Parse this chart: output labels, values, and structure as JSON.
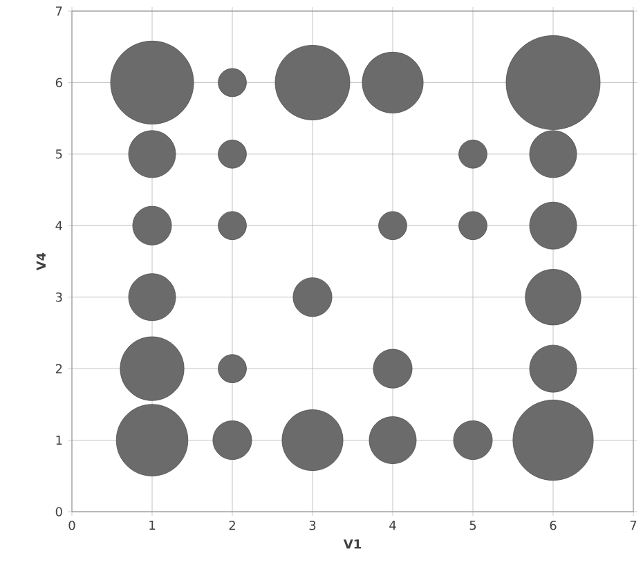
{
  "chart_data": {
    "type": "bubble",
    "xlabel": "V1",
    "ylabel": "V4",
    "xlim": [
      0,
      7
    ],
    "ylim": [
      0,
      7
    ],
    "xticks": [
      0,
      1,
      2,
      3,
      4,
      5,
      6,
      7
    ],
    "yticks": [
      0,
      1,
      2,
      3,
      4,
      5,
      6,
      7
    ],
    "grid": true,
    "series": [
      {
        "color": "#6b6b6b",
        "x": [
          1,
          2,
          3,
          4,
          6,
          1,
          2,
          5,
          6,
          1,
          2,
          4,
          5,
          6,
          1,
          3,
          6,
          1,
          2,
          4,
          6,
          1,
          2,
          3,
          4,
          5,
          6
        ],
        "values": [
          6,
          6,
          6,
          6,
          6,
          5,
          5,
          5,
          5,
          4,
          4,
          4,
          4,
          4,
          3,
          3,
          3,
          2,
          2,
          2,
          2,
          1,
          1,
          1,
          1,
          1,
          1
        ],
        "sizes": [
          0.78,
          0.09,
          0.63,
          0.42,
          1,
          0.25,
          0.09,
          0.09,
          0.25,
          0.17,
          0.09,
          0.09,
          0.09,
          0.25,
          0.25,
          0.17,
          0.35,
          0.46,
          0.09,
          0.17,
          0.25,
          0.58,
          0.17,
          0.42,
          0.25,
          0.17,
          0.73
        ]
      }
    ]
  }
}
